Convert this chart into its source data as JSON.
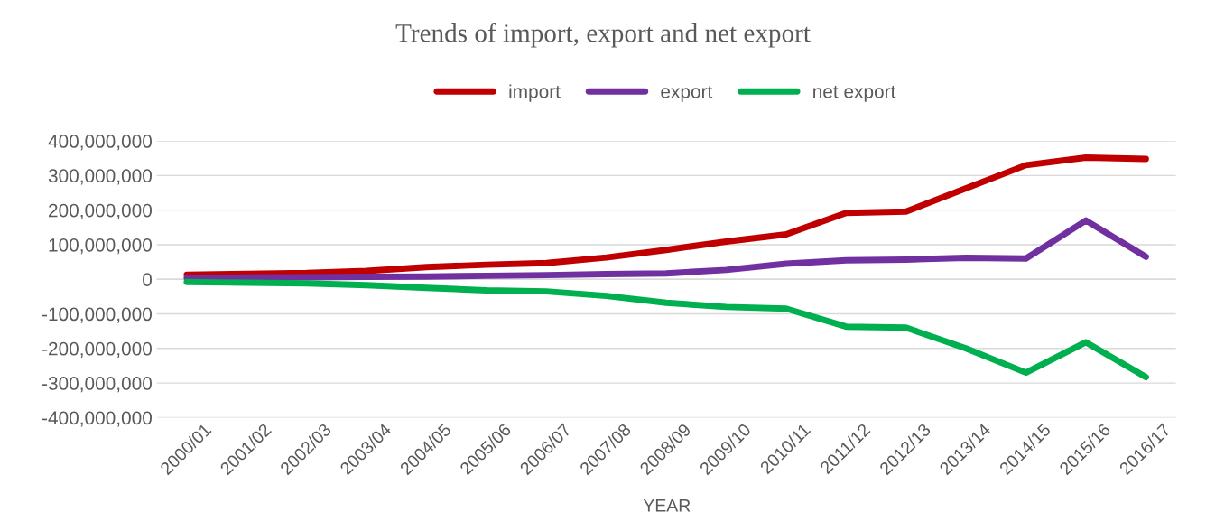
{
  "chart_data": {
    "type": "line",
    "title": "Trends of import, export and net export",
    "xlabel": "YEAR",
    "categories": [
      "2000/01",
      "2001/02",
      "2002/03",
      "2003/04",
      "2004/05",
      "2005/06",
      "2006/07",
      "2007/08",
      "2008/09",
      "2009/10",
      "2010/11",
      "2011/12",
      "2012/13",
      "2013/14",
      "2014/15",
      "2015/16",
      "2016/17"
    ],
    "series": [
      {
        "name": "import",
        "color": "#c00000",
        "values": [
          13000000,
          16000000,
          18000000,
          24000000,
          35000000,
          42000000,
          47000000,
          63000000,
          85000000,
          109000000,
          130000000,
          192000000,
          196000000,
          263000000,
          330000000,
          352000000,
          348000000
        ]
      },
      {
        "name": "export",
        "color": "#7030a0",
        "values": [
          4000000,
          5000000,
          6000000,
          7000000,
          8000000,
          10000000,
          12000000,
          15000000,
          17000000,
          27000000,
          45000000,
          55000000,
          57000000,
          62000000,
          60000000,
          170000000,
          65000000
        ]
      },
      {
        "name": "net export",
        "color": "#00b050",
        "values": [
          -8000000,
          -10000000,
          -12000000,
          -17000000,
          -25000000,
          -32000000,
          -35000000,
          -48000000,
          -68000000,
          -80000000,
          -85000000,
          -137000000,
          -140000000,
          -200000000,
          -270000000,
          -182000000,
          -283000000
        ]
      }
    ],
    "ylim": [
      -400000000,
      400000000
    ],
    "yticks": [
      {
        "value": -400000000,
        "label": "-400,000,000"
      },
      {
        "value": -300000000,
        "label": "-300,000,000"
      },
      {
        "value": -200000000,
        "label": "-200,000,000"
      },
      {
        "value": -100000000,
        "label": "-100,000,000"
      },
      {
        "value": 0,
        "label": "0"
      },
      {
        "value": 100000000,
        "label": "100,000,000"
      },
      {
        "value": 200000000,
        "label": "200,000,000"
      },
      {
        "value": 300000000,
        "label": "300,000,000"
      },
      {
        "value": 400000000,
        "label": "400,000,000"
      }
    ],
    "grid": "y",
    "legend": "top",
    "marker": "none",
    "line_style": "solid"
  }
}
